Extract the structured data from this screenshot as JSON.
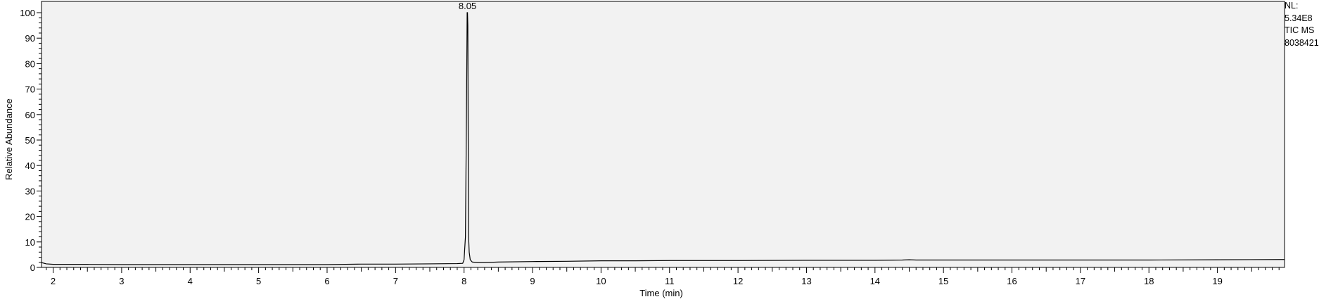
{
  "chart_data": {
    "type": "line",
    "title": "",
    "xlabel": "Time (min)",
    "ylabel": "Relative Abundance",
    "xlim": [
      1.83,
      19.98
    ],
    "ylim": [
      0,
      100
    ],
    "xticks": [
      2,
      3,
      4,
      5,
      6,
      7,
      8,
      9,
      10,
      11,
      12,
      13,
      14,
      15,
      16,
      17,
      18,
      19
    ],
    "yticks": [
      0,
      10,
      20,
      30,
      40,
      50,
      60,
      70,
      80,
      90,
      100
    ],
    "grid": false,
    "background": "#f2f2f2",
    "line_color": "#000000",
    "peak_labels": [
      {
        "x": 8.05,
        "y": 100,
        "label": "8.05"
      }
    ],
    "series": [
      {
        "values_x": [
          1.83,
          1.9,
          2.0,
          2.5,
          3.0,
          4.0,
          5.0,
          6.0,
          6.5,
          7.0,
          7.5,
          7.9,
          7.98,
          8.0,
          8.02,
          8.035,
          8.045,
          8.05,
          8.055,
          8.065,
          8.075,
          8.09,
          8.12,
          8.2,
          8.3,
          8.5,
          9.0,
          9.5,
          10.0,
          10.5,
          11.0,
          12.0,
          13.0,
          14.0,
          14.4,
          14.5,
          14.6,
          15.0,
          16.0,
          17.0,
          18.0,
          19.0,
          19.98
        ],
        "values_y": [
          1.9,
          1.4,
          1.2,
          1.2,
          1.1,
          1.1,
          1.1,
          1.1,
          1.3,
          1.3,
          1.4,
          1.5,
          1.6,
          3.0,
          12.0,
          60.0,
          100.0,
          100.0,
          95.0,
          13.0,
          6.0,
          3.0,
          2.1,
          1.9,
          1.9,
          2.1,
          2.3,
          2.4,
          2.6,
          2.6,
          2.7,
          2.7,
          2.8,
          2.8,
          2.9,
          3.0,
          2.9,
          2.9,
          2.9,
          2.9,
          2.9,
          3.0,
          3.1
        ]
      }
    ]
  },
  "side_info": {
    "nl_label": "NL:",
    "nl_value": "5.34E8",
    "trace_label": "TIC  MS",
    "file_name": "8038421"
  }
}
